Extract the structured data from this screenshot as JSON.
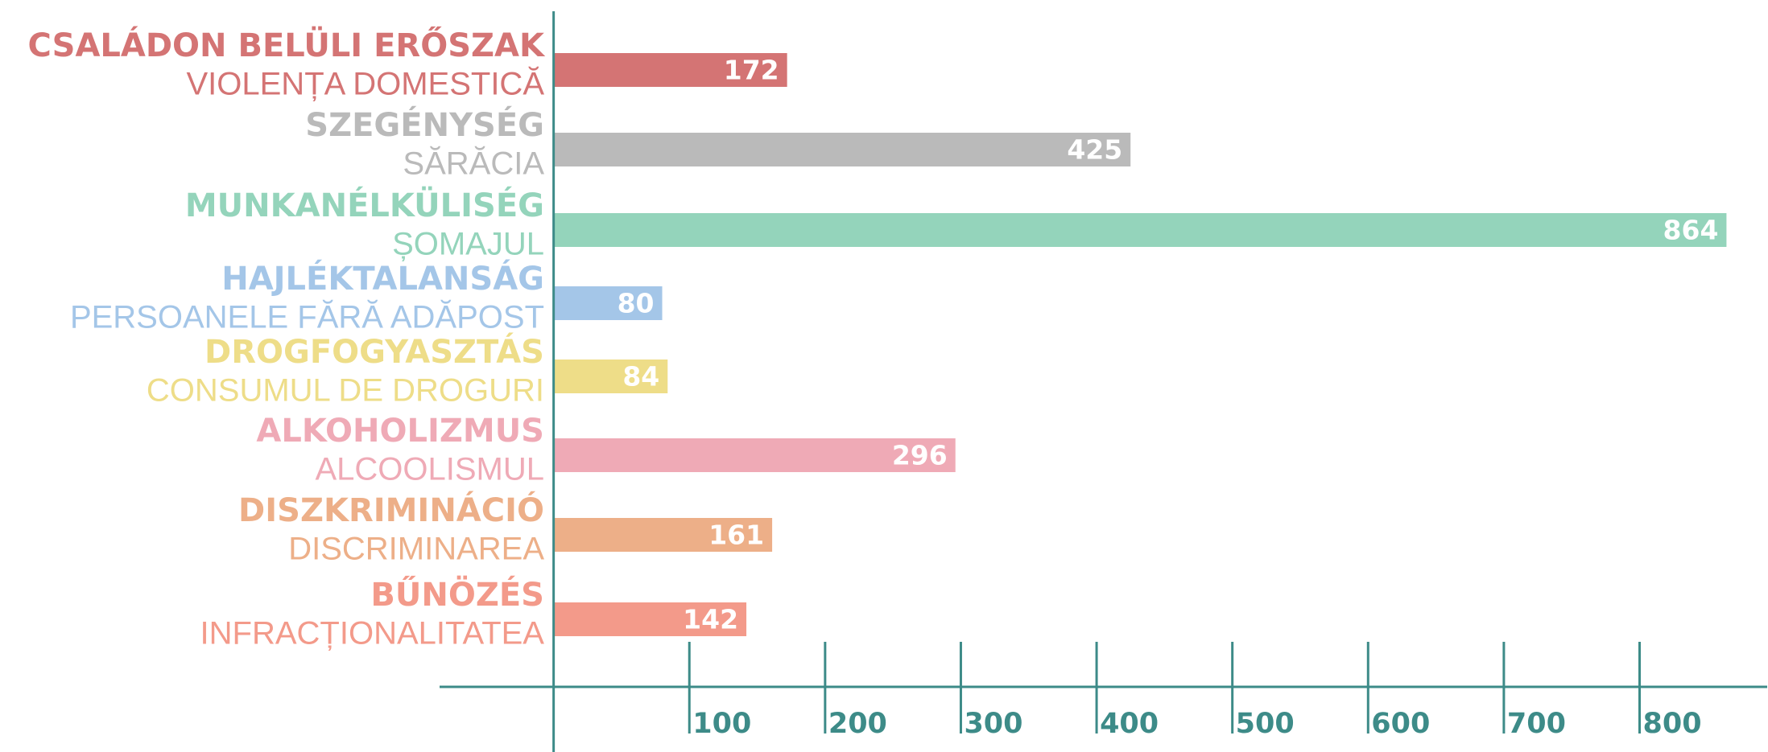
{
  "chart_data": {
    "type": "barh",
    "categories": [
      [
        "CSALÁDON BELÜLI ERŐSZAK",
        "VIOLENȚA DOMESTICĂ"
      ],
      [
        "SZEGÉNYSÉG",
        "SĂRĂCIA"
      ],
      [
        "MUNKANÉLKÜLISÉG",
        "ȘOMAJUL"
      ],
      [
        "HAJLÉKTALANSÁG",
        "PERSOANELE FĂRĂ ADĂPOST"
      ],
      [
        "DROGFOGYASZTÁS",
        "CONSUMUL DE DROGURI"
      ],
      [
        "ALKOHOLIZMUS",
        "ALCOOLISMUL"
      ],
      [
        "DISZKRIMINÁCIÓ",
        "DISCRIMINAREA"
      ],
      [
        "BŰNÖZÉS",
        "INFRACȚIONALITATEA"
      ]
    ],
    "values": [
      172,
      425,
      864,
      80,
      84,
      296,
      161,
      142
    ],
    "colors": [
      "#d47474",
      "#bababa",
      "#94d4bb",
      "#a4c6e8",
      "#eedd88",
      "#efaab6",
      "#edaf88",
      "#f39a8a"
    ],
    "axis_color": "#3d8b88",
    "xlim": [
      -84,
      894
    ],
    "xticks": [
      100,
      200,
      300,
      400,
      500,
      600,
      700,
      800
    ]
  }
}
